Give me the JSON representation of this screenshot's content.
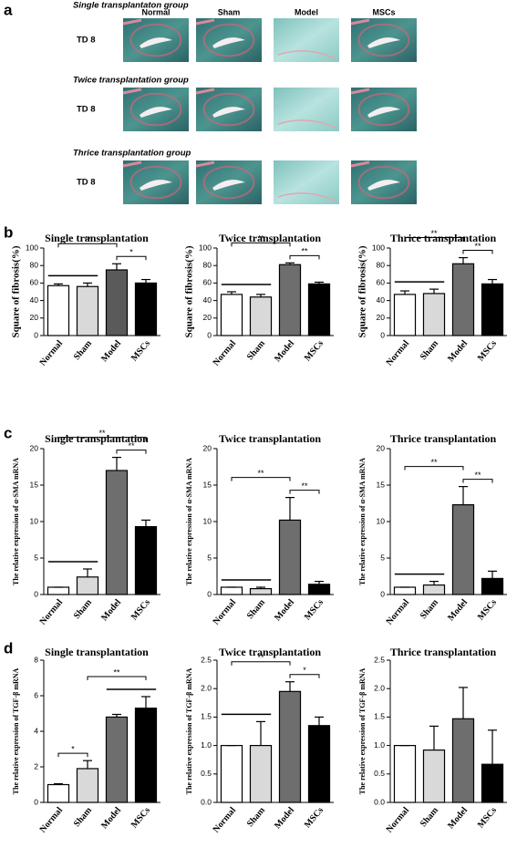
{
  "panel_labels": [
    "a",
    "b",
    "c",
    "d"
  ],
  "histology": {
    "columns": [
      "Normal",
      "Sham",
      "Model",
      "MSCs"
    ],
    "groups": [
      {
        "title": "Single transplantaton group",
        "row_label": "TD 8"
      },
      {
        "title": "Twice transplantation group",
        "row_label": "TD 8"
      },
      {
        "title": "Thrice transplantation group",
        "row_label": "TD 8"
      }
    ]
  },
  "chart_data": [
    {
      "type": "bar",
      "title": "Single transplantation",
      "ylabel": "Square of fibrosis(%)",
      "categories": [
        "Normal",
        "Sham",
        "Model",
        "MSCs"
      ],
      "values": [
        57,
        56,
        75,
        60
      ],
      "errors": [
        2,
        4,
        7,
        4
      ],
      "colors": [
        "#ffffff",
        "#d9d9d9",
        "#5a5a5a",
        "#000000"
      ],
      "ylim": [
        0,
        100
      ],
      "yticks": [
        0,
        20,
        40,
        60,
        80,
        100
      ],
      "annotations": [
        {
          "span": [
            0,
            1
          ]
        },
        {
          "text": "*",
          "span": [
            2,
            3
          ]
        },
        {
          "text": "**",
          "span": [
            0,
            2
          ]
        }
      ]
    },
    {
      "type": "bar",
      "title": "Twice transplantation",
      "ylabel": "Square of fibrosis(%)",
      "categories": [
        "Normal",
        "Sham",
        "Model",
        "MSCs"
      ],
      "values": [
        47,
        44,
        81,
        59
      ],
      "errors": [
        3,
        3,
        2,
        2
      ],
      "colors": [
        "#ffffff",
        "#d9d9d9",
        "#6e6e6e",
        "#000000"
      ],
      "ylim": [
        0,
        100
      ],
      "yticks": [
        0,
        20,
        40,
        60,
        80,
        100
      ],
      "annotations": [
        {
          "span": [
            0,
            1
          ]
        },
        {
          "text": "**",
          "span": [
            2,
            3
          ]
        },
        {
          "text": "**",
          "span": [
            0,
            2
          ]
        }
      ]
    },
    {
      "type": "bar",
      "title": "Thrice transplantation",
      "ylabel": "Square of fibrosis(%)",
      "categories": [
        "Normal",
        "Sham",
        "Model",
        "MSCs"
      ],
      "values": [
        47,
        48,
        82,
        59
      ],
      "errors": [
        4,
        5,
        7,
        5
      ],
      "colors": [
        "#ffffff",
        "#d9d9d9",
        "#6e6e6e",
        "#000000"
      ],
      "ylim": [
        0,
        100
      ],
      "yticks": [
        0,
        20,
        40,
        60,
        80,
        100
      ],
      "annotations": [
        {
          "span": [
            0,
            1
          ]
        },
        {
          "text": "**",
          "span": [
            2,
            3
          ]
        },
        {
          "text": "**",
          "span": [
            0,
            2
          ]
        }
      ]
    },
    {
      "type": "bar",
      "title": "Single transplantation",
      "ylabel": "The relative expression of α-SMA mRNA",
      "categories": [
        "Normal",
        "Sham",
        "Model",
        "MSCs"
      ],
      "values": [
        1,
        2.4,
        17,
        9.3
      ],
      "errors": [
        0,
        1.1,
        1.8,
        0.9
      ],
      "colors": [
        "#ffffff",
        "#d9d9d9",
        "#6e6e6e",
        "#000000"
      ],
      "ylim": [
        0,
        20
      ],
      "yticks": [
        0,
        5,
        10,
        15,
        20
      ],
      "annotations": [
        {
          "span": [
            0,
            1
          ]
        },
        {
          "text": "**",
          "span": [
            2,
            3
          ]
        },
        {
          "text": "**",
          "span": [
            0,
            3
          ]
        }
      ]
    },
    {
      "type": "bar",
      "title": "Twice transplantation",
      "ylabel": "The relative expression of α-SMA mRNA",
      "categories": [
        "Normal",
        "Sham",
        "Model",
        "MSCs"
      ],
      "values": [
        1,
        0.8,
        10.2,
        1.4
      ],
      "errors": [
        0,
        0.2,
        3.1,
        0.4
      ],
      "colors": [
        "#ffffff",
        "#d9d9d9",
        "#6e6e6e",
        "#000000"
      ],
      "ylim": [
        0,
        20
      ],
      "yticks": [
        0,
        5,
        10,
        15,
        20
      ],
      "annotations": [
        {
          "span": [
            0,
            1
          ]
        },
        {
          "text": "**",
          "span": [
            2,
            3
          ]
        },
        {
          "text": "**",
          "span": [
            0,
            2
          ]
        }
      ]
    },
    {
      "type": "bar",
      "title": "Thrice transplantation",
      "ylabel": "The relative expression of α-SMA mRNA",
      "categories": [
        "Normal",
        "Sham",
        "Model",
        "MSCs"
      ],
      "values": [
        1,
        1.3,
        12.3,
        2.2
      ],
      "errors": [
        0,
        0.5,
        2.5,
        1
      ],
      "colors": [
        "#ffffff",
        "#d9d9d9",
        "#6e6e6e",
        "#000000"
      ],
      "ylim": [
        0,
        20
      ],
      "yticks": [
        0,
        5,
        10,
        15,
        20
      ],
      "annotations": [
        {
          "span": [
            0,
            1
          ]
        },
        {
          "text": "**",
          "span": [
            2,
            3
          ]
        },
        {
          "text": "**",
          "span": [
            0,
            2
          ]
        }
      ]
    },
    {
      "type": "bar",
      "title": "Single transplantation",
      "ylabel": "The relative expression of TGF-β mRNA",
      "categories": [
        "Normal",
        "Sham",
        "Model",
        "MSCs"
      ],
      "values": [
        1,
        1.9,
        4.8,
        5.3
      ],
      "errors": [
        0.05,
        0.45,
        0.15,
        0.65
      ],
      "colors": [
        "#ffffff",
        "#d9d9d9",
        "#6e6e6e",
        "#000000"
      ],
      "ylim": [
        0,
        8
      ],
      "yticks": [
        0,
        2,
        4,
        6,
        8
      ],
      "annotations": [
        {
          "text": "*",
          "span": [
            0,
            1
          ]
        },
        {
          "span": [
            2,
            3
          ]
        },
        {
          "text": "**",
          "span": [
            1,
            3
          ]
        }
      ]
    },
    {
      "type": "bar",
      "title": "Twice transplantation",
      "ylabel": "The relative expression of TGF-β mRNA",
      "categories": [
        "Normal",
        "Sham",
        "Model",
        "MSCs"
      ],
      "values": [
        1,
        1,
        1.95,
        1.35
      ],
      "errors": [
        0,
        0.42,
        0.17,
        0.15
      ],
      "colors": [
        "#ffffff",
        "#d9d9d9",
        "#6e6e6e",
        "#000000"
      ],
      "ylim": [
        0,
        2.5
      ],
      "yticks": [
        {
          "value": 0,
          "label": "0.0"
        },
        0.5,
        {
          "value": 1,
          "label": "1.0"
        },
        1.5,
        {
          "value": 2,
          "label": "2.0"
        },
        2.5
      ],
      "annotations": [
        {
          "span": [
            0,
            1
          ]
        },
        {
          "text": "*",
          "span": [
            2,
            3
          ]
        },
        {
          "text": "**",
          "span": [
            0,
            2
          ]
        }
      ]
    },
    {
      "type": "bar",
      "title": "Thrice transplantation",
      "ylabel": "The relative expression of TGF-β mRNA",
      "categories": [
        "Normal",
        "Sham",
        "Model",
        "MSCs"
      ],
      "values": [
        1,
        0.92,
        1.47,
        0.67
      ],
      "errors": [
        0,
        0.42,
        0.55,
        0.6
      ],
      "colors": [
        "#ffffff",
        "#d9d9d9",
        "#6e6e6e",
        "#000000"
      ],
      "ylim": [
        0,
        2.5
      ],
      "yticks": [
        {
          "value": 0,
          "label": "0.0"
        },
        0.5,
        {
          "value": 1,
          "label": "1.0"
        },
        1.5,
        {
          "value": 2,
          "label": "2.0"
        },
        2.5
      ],
      "annotations": []
    }
  ]
}
